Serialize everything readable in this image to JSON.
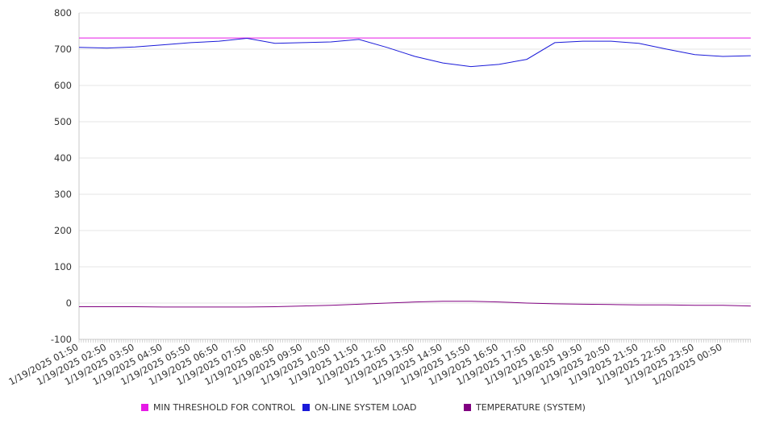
{
  "chart_data": {
    "type": "line",
    "title": "",
    "xlabel": "",
    "ylabel": "",
    "ylim": [
      -100,
      800
    ],
    "yticks": [
      -100,
      0,
      100,
      200,
      300,
      400,
      500,
      600,
      700,
      800
    ],
    "x_tick_labels": [
      "1/19/2025 01:50",
      "1/19/2025 02:50",
      "1/19/2025 03:50",
      "1/19/2025 04:50",
      "1/19/2025 05:50",
      "1/19/2025 06:50",
      "1/19/2025 07:50",
      "1/19/2025 08:50",
      "1/19/2025 09:50",
      "1/19/2025 10:50",
      "1/19/2025 11:50",
      "1/19/2025 12:50",
      "1/19/2025 13:50",
      "1/19/2025 14:50",
      "1/19/2025 15:50",
      "1/19/2025 16:50",
      "1/19/2025 17:50",
      "1/19/2025 18:50",
      "1/19/2025 19:50",
      "1/19/2025 20:50",
      "1/19/2025 21:50",
      "1/19/2025 22:50",
      "1/19/2025 23:50",
      "1/20/2025 00:50"
    ],
    "grid": true,
    "legend_position": "bottom",
    "series": [
      {
        "name": "MIN THRESHOLD FOR CONTROL",
        "color": "#e619e6",
        "values": [
          731,
          731,
          731,
          731,
          731,
          731,
          731,
          731,
          731,
          731,
          731,
          731,
          731,
          731,
          731,
          731,
          731,
          731,
          731,
          731,
          731,
          731,
          731,
          731,
          731
        ]
      },
      {
        "name": "ON-LINE SYSTEM LOAD",
        "color": "#1a1ad9",
        "values": [
          705,
          703,
          706,
          712,
          718,
          722,
          730,
          716,
          718,
          720,
          727,
          705,
          680,
          662,
          652,
          658,
          672,
          718,
          722,
          722,
          716,
          700,
          685,
          680,
          682
        ]
      },
      {
        "name": "TEMPERATURE (SYSTEM)",
        "color": "#800080",
        "values": [
          -10,
          -10,
          -10,
          -11,
          -11,
          -11,
          -11,
          -10,
          -8,
          -6,
          -3,
          0,
          3,
          5,
          5,
          3,
          0,
          -2,
          -3,
          -4,
          -5,
          -5,
          -6,
          -6,
          -8
        ]
      }
    ]
  }
}
